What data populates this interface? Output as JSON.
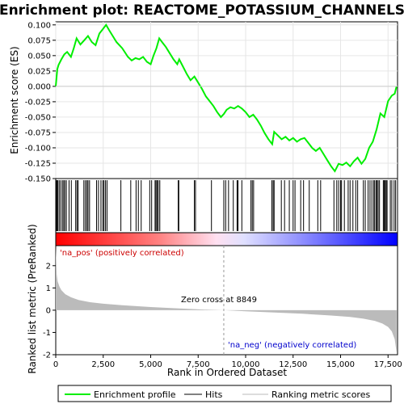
{
  "chart_data": {
    "type": "line",
    "title": "Enrichment plot: REACTOME_POTASSIUM_CHANNELS",
    "xlabel": "Rank in Ordered Dataset",
    "top_panel": {
      "ylabel": "Enrichment score (ES)",
      "ylim": [
        -0.15,
        0.105
      ],
      "yticks": [
        0.1,
        0.075,
        0.05,
        0.025,
        0.0,
        -0.025,
        -0.05,
        -0.075,
        -0.1,
        -0.125,
        -0.15
      ],
      "ytick_labels": [
        "0.100",
        "0.075",
        "0.050",
        "0.025",
        "0.000",
        "-0.025",
        "-0.050",
        "-0.075",
        "-0.100",
        "-0.125",
        "-0.150"
      ],
      "series": [
        {
          "name": "Enrichment profile",
          "color": "#00ee00",
          "x": [
            0,
            80,
            150,
            300,
            450,
            600,
            800,
            950,
            1100,
            1300,
            1500,
            1700,
            1900,
            2100,
            2300,
            2500,
            2650,
            2800,
            3000,
            3200,
            3500,
            3800,
            4000,
            4200,
            4400,
            4600,
            4800,
            5000,
            5150,
            5300,
            5450,
            5600,
            5800,
            6000,
            6200,
            6400,
            6500,
            6700,
            6900,
            7100,
            7300,
            7500,
            7700,
            7900,
            8100,
            8300,
            8500,
            8700,
            8849,
            9000,
            9200,
            9400,
            9600,
            9800,
            10000,
            10200,
            10400,
            10600,
            10800,
            11000,
            11200,
            11400,
            11500,
            11700,
            11900,
            12100,
            12300,
            12500,
            12700,
            12900,
            13100,
            13300,
            13500,
            13700,
            13900,
            14100,
            14300,
            14500,
            14700,
            14900,
            15100,
            15300,
            15500,
            15700,
            15900,
            16100,
            16300,
            16500,
            16700,
            16900,
            17100,
            17300,
            17500,
            17700,
            17850,
            17950
          ],
          "values": [
            0.0,
            0.028,
            0.035,
            0.044,
            0.052,
            0.056,
            0.048,
            0.062,
            0.078,
            0.068,
            0.075,
            0.082,
            0.072,
            0.067,
            0.086,
            0.094,
            0.1,
            0.092,
            0.082,
            0.072,
            0.062,
            0.048,
            0.042,
            0.046,
            0.044,
            0.048,
            0.04,
            0.036,
            0.05,
            0.062,
            0.078,
            0.072,
            0.064,
            0.054,
            0.044,
            0.036,
            0.044,
            0.032,
            0.02,
            0.01,
            0.016,
            0.006,
            -0.004,
            -0.016,
            -0.024,
            -0.032,
            -0.042,
            -0.05,
            -0.045,
            -0.038,
            -0.034,
            -0.036,
            -0.032,
            -0.036,
            -0.042,
            -0.05,
            -0.046,
            -0.054,
            -0.064,
            -0.076,
            -0.086,
            -0.094,
            -0.074,
            -0.08,
            -0.086,
            -0.082,
            -0.088,
            -0.084,
            -0.09,
            -0.086,
            -0.084,
            -0.092,
            -0.1,
            -0.105,
            -0.1,
            -0.11,
            -0.12,
            -0.13,
            -0.138,
            -0.126,
            -0.128,
            -0.124,
            -0.13,
            -0.122,
            -0.116,
            -0.126,
            -0.118,
            -0.1,
            -0.09,
            -0.07,
            -0.044,
            -0.05,
            -0.024,
            -0.015,
            -0.012,
            0.0
          ]
        }
      ]
    },
    "hits": {
      "name": "Hits",
      "x": [
        30,
        60,
        110,
        180,
        260,
        350,
        420,
        480,
        560,
        700,
        820,
        1050,
        1120,
        1180,
        1480,
        1560,
        1640,
        1700,
        1780,
        2150,
        2250,
        2380,
        2480,
        2540,
        2620,
        2700,
        3430,
        3950,
        4230,
        4350,
        4500,
        4950,
        5050,
        5230,
        5280,
        5340,
        5400,
        5480,
        6450,
        6480,
        7300,
        7360,
        8200,
        8850,
        8950,
        9100,
        9350,
        9550,
        9600,
        9800,
        10280,
        10350,
        10420,
        11380,
        11450,
        11500,
        11880,
        12050,
        12300,
        12500,
        12600,
        12900,
        13050,
        13350,
        13800,
        13950,
        14650,
        14800,
        14900,
        15000,
        15050,
        15200,
        15400,
        15500,
        15650,
        15800,
        15900,
        16200,
        16300,
        16450,
        16550,
        16650,
        16750,
        16800,
        16880,
        16920,
        16980,
        17050,
        17250,
        17300,
        17350,
        17400,
        17450,
        17620,
        17700,
        17820,
        17900
      ],
      "color": "#000000"
    },
    "color_bar": {
      "description": "red (positively correlated) to blue (negatively correlated) gradient",
      "pos_color": "#ff0000",
      "neg_color": "#0000ff"
    },
    "bottom_panel": {
      "ylabel": "Ranked list metric (PreRanked)",
      "ylim": [
        -2.0,
        2.9
      ],
      "yticks": [
        2,
        1,
        0,
        -1,
        -2
      ],
      "ytick_labels": [
        "2",
        "1",
        "0",
        "-1",
        "-2"
      ],
      "metric_x": [
        0,
        50,
        100,
        200,
        300,
        500,
        800,
        1200,
        1800,
        2500,
        3500,
        5000,
        6500,
        8000,
        8849,
        10000,
        11500,
        13000,
        14500,
        15500,
        16200,
        16800,
        17200,
        17500,
        17700,
        17850,
        17950
      ],
      "metric_values": [
        2.9,
        1.6,
        1.3,
        1.05,
        0.9,
        0.72,
        0.58,
        0.46,
        0.36,
        0.29,
        0.22,
        0.14,
        0.08,
        0.02,
        0.0,
        -0.05,
        -0.1,
        -0.16,
        -0.24,
        -0.3,
        -0.38,
        -0.48,
        -0.6,
        -0.75,
        -0.95,
        -1.3,
        -1.9
      ],
      "fill_color": "#bbbbbb"
    },
    "xlim": [
      0,
      18000
    ],
    "xticks": [
      0,
      2500,
      5000,
      7500,
      10000,
      12500,
      15000,
      17500
    ],
    "xtick_labels": [
      "0",
      "2,500",
      "5,000",
      "7,500",
      "10,000",
      "12,500",
      "15,000",
      "17,500"
    ],
    "zero_cross": 8849,
    "annotations": {
      "pos_label": "'na_pos' (positively correlated)",
      "neg_label": "'na_neg' (negatively correlated)",
      "zero_label": "Zero cross at 8849"
    },
    "legend": {
      "placement": "bottom",
      "entries": [
        {
          "label": "Enrichment profile",
          "color": "#00ee00"
        },
        {
          "label": "Hits",
          "color": "#000000"
        },
        {
          "label": "Ranking metric scores",
          "color": "#bbbbbb"
        }
      ]
    }
  }
}
